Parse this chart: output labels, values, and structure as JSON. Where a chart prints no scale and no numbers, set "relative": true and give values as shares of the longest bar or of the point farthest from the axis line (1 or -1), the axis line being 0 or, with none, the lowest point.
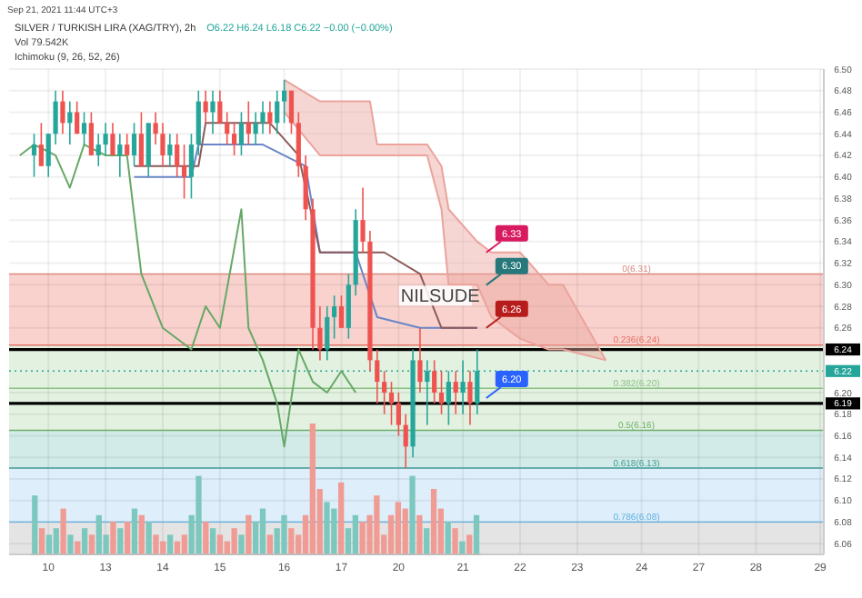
{
  "chart_data": [
    {
      "type": "candlestick",
      "title": "SILVER / TURKISH LIRA (XAG/TRY), 2h",
      "subtitle": "O6.22 H6.24 L6.18 C6.22 −0.00 (−0.00%)",
      "annotations": [
        "Sep 21, 2021 11:44 UTC+3",
        "Ichimoku (9, 26, 52, 26)",
        "NILSUDE",
        "Vol 79.542K",
        "6.30",
        {
          "text": "6.33",
          "y": 6.33
        },
        {
          "text": "6.26",
          "y": 6.26
        },
        {
          "text": "6.20",
          "y": 6.195
        }
      ],
      "categories": [
        null,
        null,
        null,
        null,
        null,
        "10",
        null,
        null,
        null,
        null,
        null,
        null,
        null,
        "13",
        null,
        null,
        null,
        null,
        null,
        null,
        null,
        "14",
        null,
        null,
        null,
        null,
        null,
        null,
        null,
        "15",
        null,
        null,
        null,
        null,
        null,
        null,
        null,
        null,
        "16",
        null,
        null,
        null,
        null,
        null,
        null,
        null,
        "17",
        null,
        null,
        null,
        null,
        null,
        null,
        null,
        "20",
        null,
        null,
        null,
        null,
        null,
        null,
        null,
        null,
        "21",
        null,
        null,
        null,
        null,
        null,
        null,
        null,
        "22",
        null,
        null,
        null,
        null,
        null,
        null,
        null,
        "23",
        null,
        null,
        null,
        null,
        null,
        null,
        null,
        null,
        "24",
        null,
        null,
        null,
        null,
        null,
        null,
        null,
        "27",
        null,
        null,
        null,
        null,
        null,
        null,
        null,
        "28",
        null,
        null,
        null,
        null,
        null,
        null,
        null,
        null,
        "29"
      ],
      "ohlc": [
        null,
        null,
        null,
        [
          6.42,
          6.44,
          6.4,
          6.43
        ],
        [
          6.43,
          6.45,
          6.41,
          6.41
        ],
        [
          6.41,
          6.44,
          6.4,
          6.44
        ],
        [
          6.44,
          6.48,
          6.43,
          6.47
        ],
        [
          6.47,
          6.48,
          6.44,
          6.45
        ],
        [
          6.45,
          6.47,
          6.43,
          6.46
        ],
        [
          6.46,
          6.47,
          6.44,
          6.44
        ],
        [
          6.44,
          6.46,
          6.43,
          6.45
        ],
        [
          6.45,
          6.46,
          6.42,
          6.42
        ],
        [
          6.42,
          6.44,
          6.41,
          6.43
        ],
        [
          6.43,
          6.45,
          6.42,
          6.44
        ],
        [
          6.44,
          6.45,
          6.42,
          6.42
        ],
        [
          6.42,
          6.44,
          6.4,
          6.43
        ],
        [
          6.43,
          6.44,
          6.42,
          6.42
        ],
        [
          6.42,
          6.45,
          6.41,
          6.44
        ],
        [
          6.44,
          6.46,
          6.41,
          6.41
        ],
        [
          6.41,
          6.45,
          6.4,
          6.45
        ],
        [
          6.45,
          6.46,
          6.43,
          6.44
        ],
        [
          6.44,
          6.45,
          6.41,
          6.42
        ],
        [
          6.42,
          6.44,
          6.41,
          6.43
        ],
        [
          6.43,
          6.44,
          6.4,
          6.41
        ],
        [
          6.41,
          6.43,
          6.38,
          6.4
        ],
        [
          6.4,
          6.44,
          6.38,
          6.43
        ],
        [
          6.43,
          6.48,
          6.42,
          6.47
        ],
        [
          6.47,
          6.48,
          6.45,
          6.46
        ],
        [
          6.46,
          6.48,
          6.44,
          6.47
        ],
        [
          6.47,
          6.48,
          6.45,
          6.45
        ],
        [
          6.45,
          6.46,
          6.43,
          6.44
        ],
        [
          6.44,
          6.45,
          6.42,
          6.43
        ],
        [
          6.43,
          6.46,
          6.42,
          6.45
        ],
        [
          6.45,
          6.47,
          6.43,
          6.44
        ],
        [
          6.44,
          6.46,
          6.43,
          6.45
        ],
        [
          6.45,
          6.47,
          6.44,
          6.46
        ],
        [
          6.46,
          6.47,
          6.44,
          6.45
        ],
        [
          6.45,
          6.48,
          6.44,
          6.47
        ],
        [
          6.47,
          6.49,
          6.45,
          6.48
        ],
        [
          6.48,
          6.48,
          6.44,
          6.45
        ],
        [
          6.45,
          6.46,
          6.4,
          6.41
        ],
        [
          6.41,
          6.42,
          6.36,
          6.37
        ],
        [
          6.37,
          6.38,
          6.24,
          6.26
        ],
        [
          6.26,
          6.28,
          6.23,
          6.24
        ],
        [
          6.24,
          6.28,
          6.23,
          6.27
        ],
        [
          6.27,
          6.29,
          6.25,
          6.28
        ],
        [
          6.28,
          6.29,
          6.26,
          6.26
        ],
        [
          6.26,
          6.31,
          6.25,
          6.3
        ],
        [
          6.3,
          6.37,
          6.29,
          6.36
        ],
        [
          6.36,
          6.39,
          6.33,
          6.34
        ],
        [
          6.34,
          6.35,
          6.22,
          6.23
        ],
        [
          6.23,
          6.24,
          6.19,
          6.21
        ],
        [
          6.21,
          6.22,
          6.18,
          6.2
        ],
        [
          6.2,
          6.21,
          6.17,
          6.19
        ],
        [
          6.19,
          6.2,
          6.16,
          6.17
        ],
        [
          6.17,
          6.18,
          6.13,
          6.15
        ],
        [
          6.15,
          6.24,
          6.14,
          6.23
        ],
        [
          6.23,
          6.26,
          6.2,
          6.21
        ],
        [
          6.21,
          6.23,
          6.17,
          6.22
        ],
        [
          6.22,
          6.23,
          6.19,
          6.2
        ],
        [
          6.2,
          6.22,
          6.18,
          6.19
        ],
        [
          6.19,
          6.22,
          6.17,
          6.21
        ],
        [
          6.21,
          6.22,
          6.18,
          6.2
        ],
        [
          6.2,
          6.23,
          6.18,
          6.21
        ],
        [
          6.21,
          6.22,
          6.17,
          6.19
        ],
        [
          6.19,
          6.24,
          6.18,
          6.22
        ],
        null,
        null,
        null,
        null,
        null,
        null,
        null,
        null,
        null,
        null,
        null,
        null,
        null,
        null,
        null,
        null,
        null,
        null,
        null,
        null,
        null,
        null,
        null,
        null,
        null,
        null,
        null,
        null,
        null,
        null,
        null,
        null,
        null,
        null,
        null,
        null,
        null,
        null,
        null,
        null,
        null,
        null,
        null,
        null,
        null,
        null,
        null,
        null
      ],
      "colors": [
        null,
        null,
        null,
        "#26a69a",
        "#ef5350",
        "#26a69a",
        "#26a69a",
        "#ef5350",
        "#26a69a",
        "#ef5350",
        "#26a69a",
        "#ef5350",
        "#26a69a",
        "#26a69a",
        "#ef5350",
        "#26a69a",
        "#ef5350",
        "#26a69a",
        "#ef5350",
        "#26a69a",
        "#ef5350",
        "#ef5350",
        "#26a69a",
        "#ef5350",
        "#ef5350",
        "#26a69a",
        "#26a69a",
        "#ef5350",
        "#26a69a",
        "#ef5350",
        "#ef5350",
        "#ef5350",
        "#26a69a",
        "#ef5350",
        "#26a69a",
        "#26a69a",
        "#ef5350",
        "#26a69a",
        "#26a69a",
        "#ef5350",
        "#ef5350",
        "#ef5350",
        "#ef5350",
        "#ef5350",
        "#26a69a",
        "#26a69a",
        "#ef5350",
        "#26a69a",
        "#26a69a",
        "#ef5350",
        "#ef5350",
        "#ef5350",
        "#ef5350",
        "#ef5350",
        "#ef5350",
        "#ef5350",
        "#26a69a",
        "#ef5350",
        "#26a69a",
        "#ef5350",
        "#ef5350",
        "#26a69a",
        "#ef5350",
        "#26a69a",
        "#ef5350",
        "#26a69a",
        null,
        null,
        null,
        null,
        null,
        null,
        null,
        null,
        null,
        null,
        null,
        null,
        null,
        null,
        null,
        null,
        null,
        null,
        null,
        null,
        null,
        null,
        null,
        null,
        null,
        null,
        null,
        null,
        null,
        null,
        null,
        null,
        null,
        null,
        null,
        null,
        null,
        null,
        null,
        null,
        null,
        null,
        null,
        null,
        null,
        null,
        null,
        null
      ],
      "series": [
        {
          "type": "line",
          "color": "#eba39c",
          "values": [
            null,
            null,
            null,
            null,
            null,
            null,
            null,
            null,
            null,
            null,
            null,
            null,
            null,
            null,
            null,
            null,
            null,
            null,
            null,
            null,
            null,
            null,
            null,
            null,
            null,
            null,
            null,
            null,
            null,
            null,
            null,
            null,
            null,
            null,
            null,
            null,
            null,
            null,
            6.49,
            null,
            null,
            null,
            null,
            6.47,
            null,
            null,
            null,
            null,
            null,
            null,
            6.47,
            6.43,
            null,
            null,
            null,
            null,
            null,
            null,
            6.43,
            null,
            6.41,
            6.37,
            null,
            null,
            null,
            6.34,
            null,
            6.33,
            null,
            null,
            null,
            6.33,
            null,
            null,
            null,
            6.3,
            null,
            6.3,
            null,
            null,
            null,
            null,
            null,
            6.23,
            null,
            null,
            null,
            null,
            null,
            null,
            null,
            null,
            null,
            null,
            null,
            null,
            null,
            null,
            null,
            null,
            null,
            null,
            null,
            null,
            null,
            null,
            null,
            null,
            null,
            null,
            null,
            null,
            null,
            null
          ]
        },
        {
          "type": "line",
          "color": "#eba39c",
          "values": [
            null,
            null,
            null,
            null,
            null,
            null,
            null,
            null,
            null,
            null,
            null,
            null,
            null,
            null,
            null,
            null,
            null,
            null,
            null,
            null,
            null,
            null,
            null,
            null,
            null,
            null,
            null,
            null,
            null,
            null,
            null,
            null,
            null,
            null,
            null,
            null,
            null,
            null,
            6.46,
            null,
            null,
            null,
            null,
            6.42,
            null,
            null,
            null,
            null,
            null,
            null,
            6.42,
            6.42,
            null,
            null,
            null,
            null,
            null,
            null,
            6.42,
            null,
            6.37,
            6.3,
            null,
            null,
            null,
            6.3,
            null,
            6.27,
            null,
            null,
            null,
            6.25,
            null,
            null,
            null,
            6.24,
            null,
            6.24,
            null,
            null,
            null,
            null,
            null,
            6.23,
            null,
            null,
            null,
            null,
            null,
            null,
            null,
            null,
            null,
            null,
            null,
            null,
            null,
            null,
            null,
            null,
            null,
            null,
            null,
            null,
            null,
            null,
            null,
            null,
            null,
            null,
            null,
            null,
            null,
            null
          ]
        },
        {
          "type": "line",
          "color": "#66a866",
          "values": [
            null,
            6.42,
            null,
            6.43,
            null,
            null,
            6.42,
            null,
            6.39,
            null,
            6.43,
            null,
            null,
            6.42,
            null,
            null,
            6.42,
            null,
            6.31,
            null,
            null,
            6.26,
            null,
            null,
            null,
            6.24,
            null,
            6.28,
            null,
            6.26,
            null,
            null,
            6.37,
            6.26,
            null,
            6.23,
            null,
            6.19,
            6.15,
            null,
            6.24,
            null,
            6.21,
            null,
            6.2,
            null,
            6.22,
            null,
            6.2,
            null,
            null,
            null,
            null,
            null,
            null,
            null,
            null,
            null,
            null,
            null,
            null,
            null,
            null,
            null,
            null,
            null,
            null,
            null,
            null,
            null,
            null,
            null,
            null,
            null,
            null,
            null,
            null,
            null,
            null,
            null,
            null,
            null,
            null,
            null,
            null,
            null,
            null,
            null,
            null,
            null,
            null,
            null,
            null,
            null,
            null,
            null,
            null,
            null,
            null,
            null,
            null,
            null,
            null,
            null,
            null,
            null,
            null,
            null,
            null,
            null,
            null,
            null,
            null,
            null
          ]
        },
        {
          "type": "line",
          "color": "#6a86c8",
          "values": [
            null,
            null,
            null,
            null,
            null,
            null,
            null,
            null,
            null,
            null,
            null,
            null,
            null,
            null,
            null,
            null,
            null,
            6.4,
            null,
            null,
            null,
            null,
            null,
            null,
            null,
            6.4,
            6.43,
            null,
            null,
            null,
            null,
            null,
            null,
            null,
            null,
            6.43,
            null,
            null,
            null,
            null,
            null,
            6.41,
            null,
            6.33,
            null,
            null,
            null,
            null,
            6.33,
            null,
            null,
            6.27,
            null,
            null,
            null,
            null,
            null,
            6.26,
            null,
            null,
            null,
            null,
            null,
            null,
            null,
            6.26,
            null,
            null,
            null,
            null,
            null,
            null,
            null,
            null,
            null,
            null,
            null,
            null,
            null,
            null,
            null,
            null,
            null,
            null,
            null,
            null,
            null,
            null,
            null,
            null,
            null,
            null,
            null,
            null,
            null,
            null,
            null,
            null,
            null,
            null,
            null,
            null,
            null,
            null,
            null,
            null,
            null,
            null,
            null,
            null,
            null,
            null,
            null,
            null
          ]
        },
        {
          "type": "line",
          "color": "#8c5a5a",
          "values": [
            null,
            null,
            null,
            null,
            null,
            null,
            null,
            null,
            null,
            null,
            null,
            null,
            null,
            null,
            null,
            null,
            null,
            6.41,
            null,
            null,
            null,
            null,
            null,
            null,
            null,
            null,
            6.41,
            6.45,
            null,
            null,
            null,
            null,
            null,
            null,
            null,
            null,
            6.45,
            null,
            null,
            null,
            6.42,
            null,
            null,
            6.33,
            null,
            null,
            null,
            null,
            null,
            null,
            null,
            null,
            6.33,
            null,
            null,
            null,
            null,
            6.31,
            null,
            null,
            6.26,
            null,
            null,
            null,
            null,
            6.26,
            null,
            null,
            null,
            null,
            null,
            null,
            null,
            null,
            null,
            null,
            null,
            null,
            null,
            null,
            null,
            null,
            null,
            null,
            null,
            null,
            null,
            null,
            null,
            null,
            null,
            null,
            null,
            null,
            null,
            null,
            null,
            null,
            null,
            null,
            null,
            null,
            null,
            null,
            null,
            null,
            null,
            null,
            null,
            null,
            null,
            null,
            null,
            null
          ]
        }
      ],
      "ylim": [
        6.05,
        6.5
      ],
      "yticks": [
        6.06,
        6.08,
        {
          "value": 6.1,
          "label": "6.10"
        },
        6.12,
        6.14,
        6.16,
        6.18,
        {
          "value": 6.2,
          "label": "6.20"
        },
        6.26,
        6.28,
        {
          "value": 6.3,
          "label": "6.30"
        },
        6.32,
        6.34,
        6.36,
        6.38,
        {
          "value": 6.4,
          "label": "6.40"
        },
        6.42,
        6.44,
        6.46,
        6.48,
        {
          "value": 6.5,
          "label": "6.50"
        }
      ],
      "grid": true,
      "bands": [
        {
          "axis": "y",
          "from": 6.244,
          "to": 6.31,
          "color": "#f9d2ce"
        },
        {
          "axis": "y",
          "from": 6.165,
          "to": 6.244,
          "color": "#e2f1e0"
        },
        {
          "axis": "y",
          "from": 6.13,
          "to": 6.165,
          "color": "#d2ebe8"
        },
        {
          "axis": "y",
          "from": 6.08,
          "to": 6.13,
          "color": "#deeefa"
        },
        {
          "axis": "y",
          "from": 6.05,
          "to": 6.08,
          "color": "#e4e4e4"
        }
      ],
      "ref_lines": [
        {
          "axis": "y",
          "value": 6.31,
          "label": "0(6.31)",
          "color": "#d98a83"
        },
        {
          "axis": "y",
          "value": 6.244,
          "label": "0.236(6.24)",
          "color": "#e57368"
        },
        {
          "axis": "y",
          "value": 6.204,
          "label": "0.382(6.20)",
          "color": "#8cc184"
        },
        {
          "axis": "y",
          "value": 6.165,
          "label": "0.5(6.16)",
          "color": "#6fae6a"
        },
        {
          "axis": "y",
          "value": 6.13,
          "label": "0.618(6.13)",
          "color": "#3f9a93"
        },
        {
          "axis": "y",
          "value": 6.08,
          "label": "0.786(6.08)",
          "color": "#5fb0e0"
        },
        {
          "axis": "y",
          "value": 6.24,
          "label": "6.24",
          "color": "#000000"
        },
        {
          "axis": "y",
          "value": 6.19,
          "label": "6.19",
          "color": "#000000"
        },
        {
          "axis": "y",
          "value": 6.22,
          "label": "6.22",
          "color": "#26a69a",
          "line_style": "dotted"
        }
      ]
    },
    {
      "type": "bar",
      "relative": true,
      "categories": [
        null,
        null,
        null,
        null,
        null,
        null,
        null,
        null,
        null,
        null,
        null,
        null,
        null,
        null,
        null,
        null,
        null,
        null,
        null,
        null,
        null,
        null,
        null,
        null,
        null,
        null,
        null,
        null,
        null,
        null,
        null,
        null,
        null,
        null,
        null,
        null,
        null,
        null,
        null,
        null,
        null,
        null,
        null,
        null,
        null,
        null,
        null,
        null,
        null,
        null,
        null,
        null,
        null,
        null,
        null,
        null,
        null,
        null,
        null,
        null,
        null,
        null,
        null
      ],
      "values": [
        0.45,
        0.2,
        0.15,
        0.2,
        0.35,
        0.15,
        0.1,
        0.2,
        0.15,
        0.3,
        0.15,
        0.25,
        0.2,
        0.25,
        0.35,
        0.3,
        0.25,
        0.15,
        0.1,
        0.15,
        0.1,
        0.15,
        0.3,
        0.6,
        0.25,
        0.2,
        0.15,
        0.1,
        0.2,
        0.15,
        0.3,
        0.25,
        0.35,
        0.15,
        0.2,
        0.3,
        0.2,
        0.15,
        0.3,
        1.0,
        0.5,
        0.4,
        0.35,
        0.55,
        0.2,
        0.3,
        0.25,
        0.3,
        0.45,
        0.15,
        0.3,
        0.4,
        0.35,
        0.6,
        0.3,
        0.2,
        0.5,
        0.35,
        0.25,
        0.2,
        0.1,
        0.15,
        0.3
      ],
      "colors": [
        "#7cc7be",
        "#f09b94",
        "#7cc7be",
        "#7cc7be",
        "#f09b94",
        "#7cc7be",
        "#f09b94",
        "#7cc7be",
        "#f09b94",
        "#7cc7be",
        "#7cc7be",
        "#f09b94",
        "#7cc7be",
        "#f09b94",
        "#7cc7be",
        "#f09b94",
        "#7cc7be",
        "#f09b94",
        "#f09b94",
        "#7cc7be",
        "#f09b94",
        "#f09b94",
        "#7cc7be",
        "#7cc7be",
        "#f09b94",
        "#7cc7be",
        "#f09b94",
        "#f09b94",
        "#f09b94",
        "#7cc7be",
        "#f09b94",
        "#7cc7be",
        "#7cc7be",
        "#f09b94",
        "#7cc7be",
        "#7cc7be",
        "#f09b94",
        "#f09b94",
        "#f09b94",
        "#f09b94",
        "#f09b94",
        "#7cc7be",
        "#7cc7be",
        "#f09b94",
        "#7cc7be",
        "#7cc7be",
        "#f09b94",
        "#f09b94",
        "#f09b94",
        "#f09b94",
        "#f09b94",
        "#f09b94",
        "#f09b94",
        "#7cc7be",
        "#f09b94",
        "#7cc7be",
        "#f09b94",
        "#f09b94",
        "#7cc7be",
        "#f09b94",
        "#7cc7be",
        "#f09b94",
        "#7cc7be"
      ]
    }
  ]
}
